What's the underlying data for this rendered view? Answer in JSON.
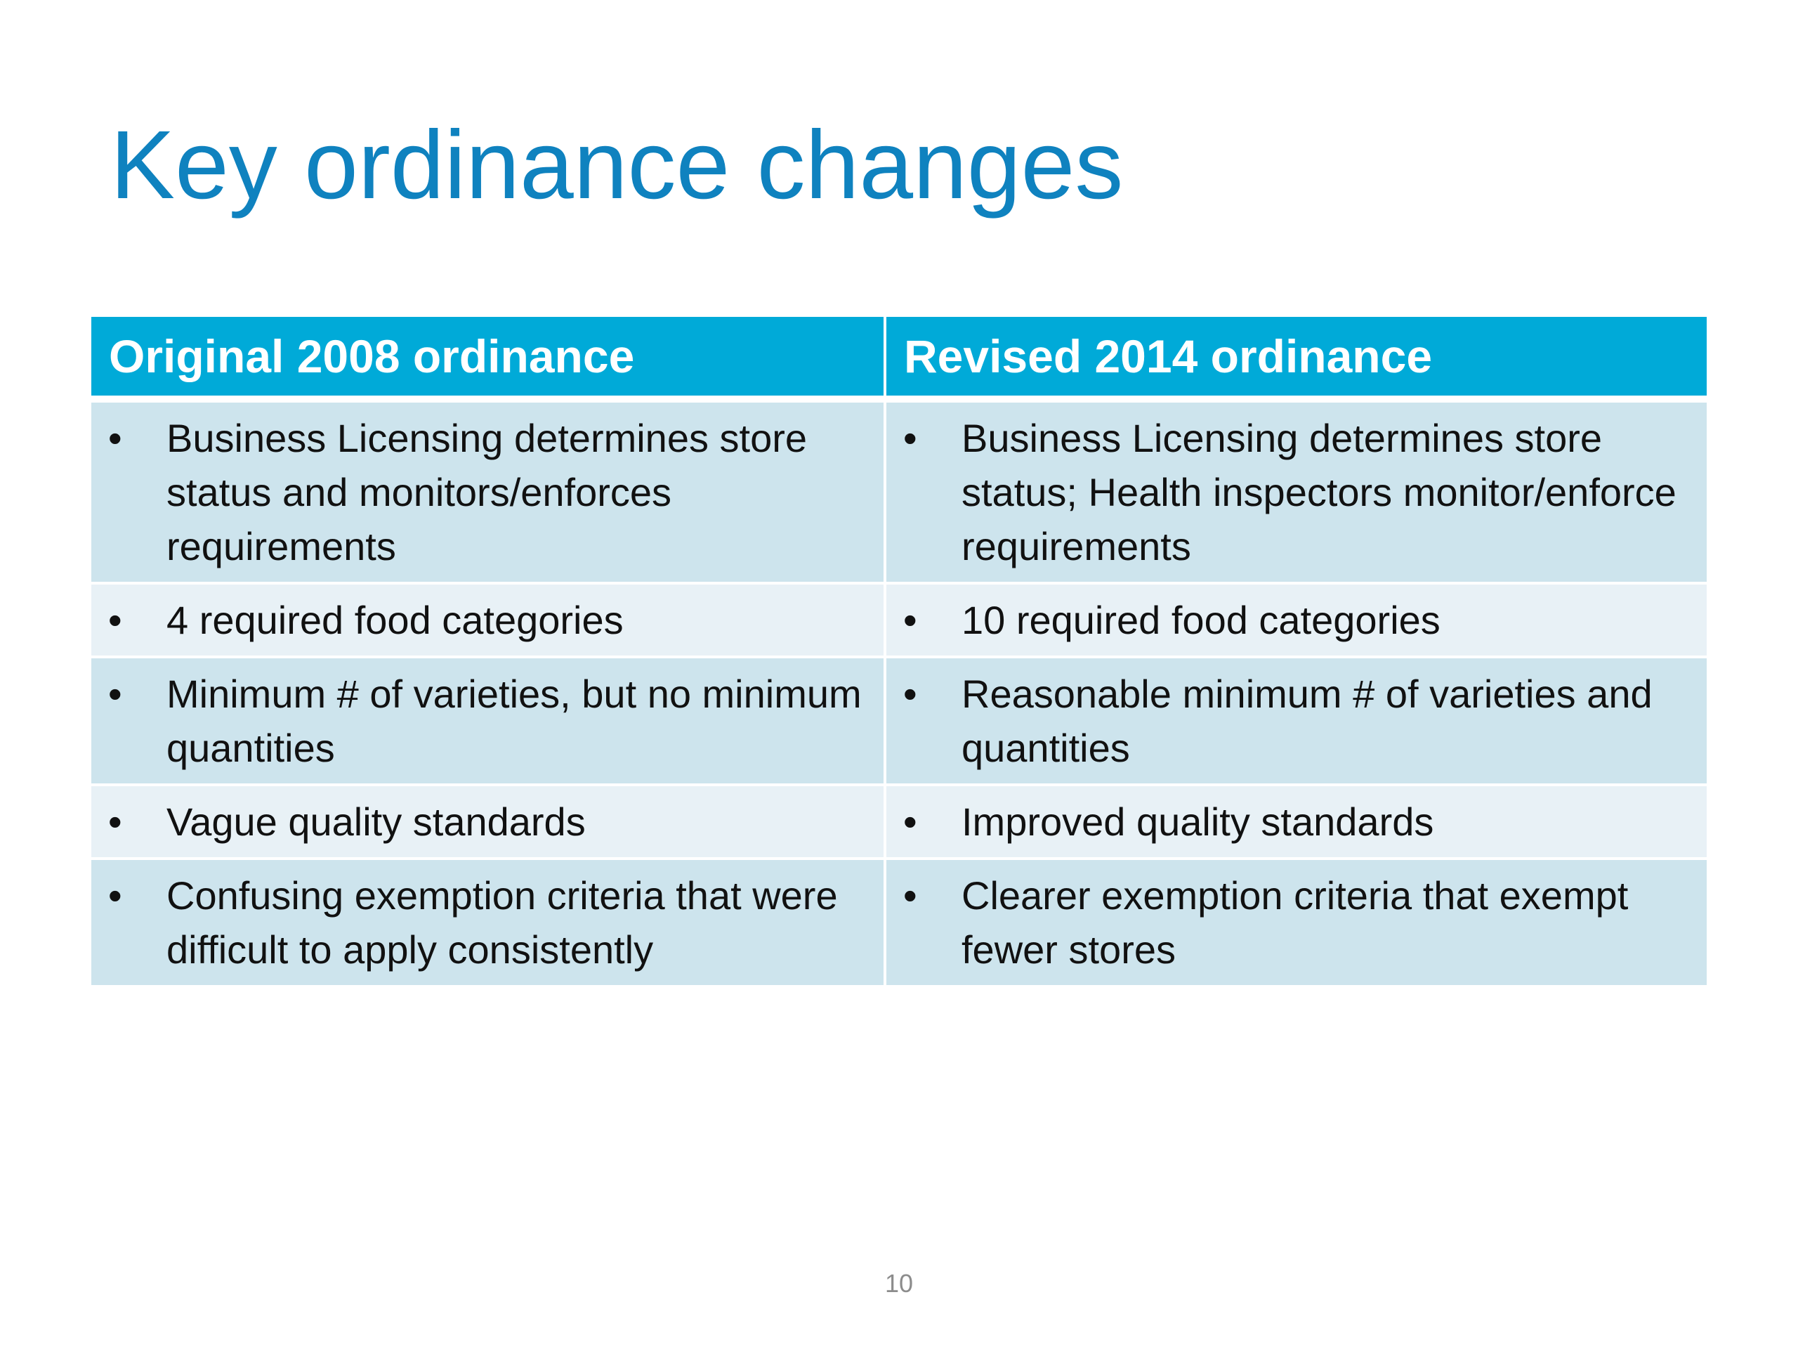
{
  "slide": {
    "title": "Key ordinance changes",
    "page_number": "10"
  },
  "table": {
    "headers": [
      "Original 2008 ordinance",
      "Revised 2014 ordinance"
    ],
    "bullet_char": "•",
    "rows": [
      {
        "original": "Business Licensing determines store status and monitors/enforces requirements",
        "revised": "Business Licensing determines store status; Health inspectors monitor/enforce requirements"
      },
      {
        "original": "4 required food categories",
        "revised": "10 required food categories"
      },
      {
        "original": "Minimum # of varieties, but no minimum quantities",
        "revised": "Reasonable minimum # of varieties and quantities"
      },
      {
        "original": "Vague quality standards",
        "revised": "Improved quality standards"
      },
      {
        "original": "Confusing exemption criteria that were difficult to apply consistently",
        "revised": "Clearer exemption criteria that exempt fewer stores"
      }
    ]
  },
  "colors": {
    "title": "#0f82bf",
    "header_bg": "#00aad8",
    "row_dark": "#cde4ed",
    "row_light": "#e8f1f6"
  }
}
